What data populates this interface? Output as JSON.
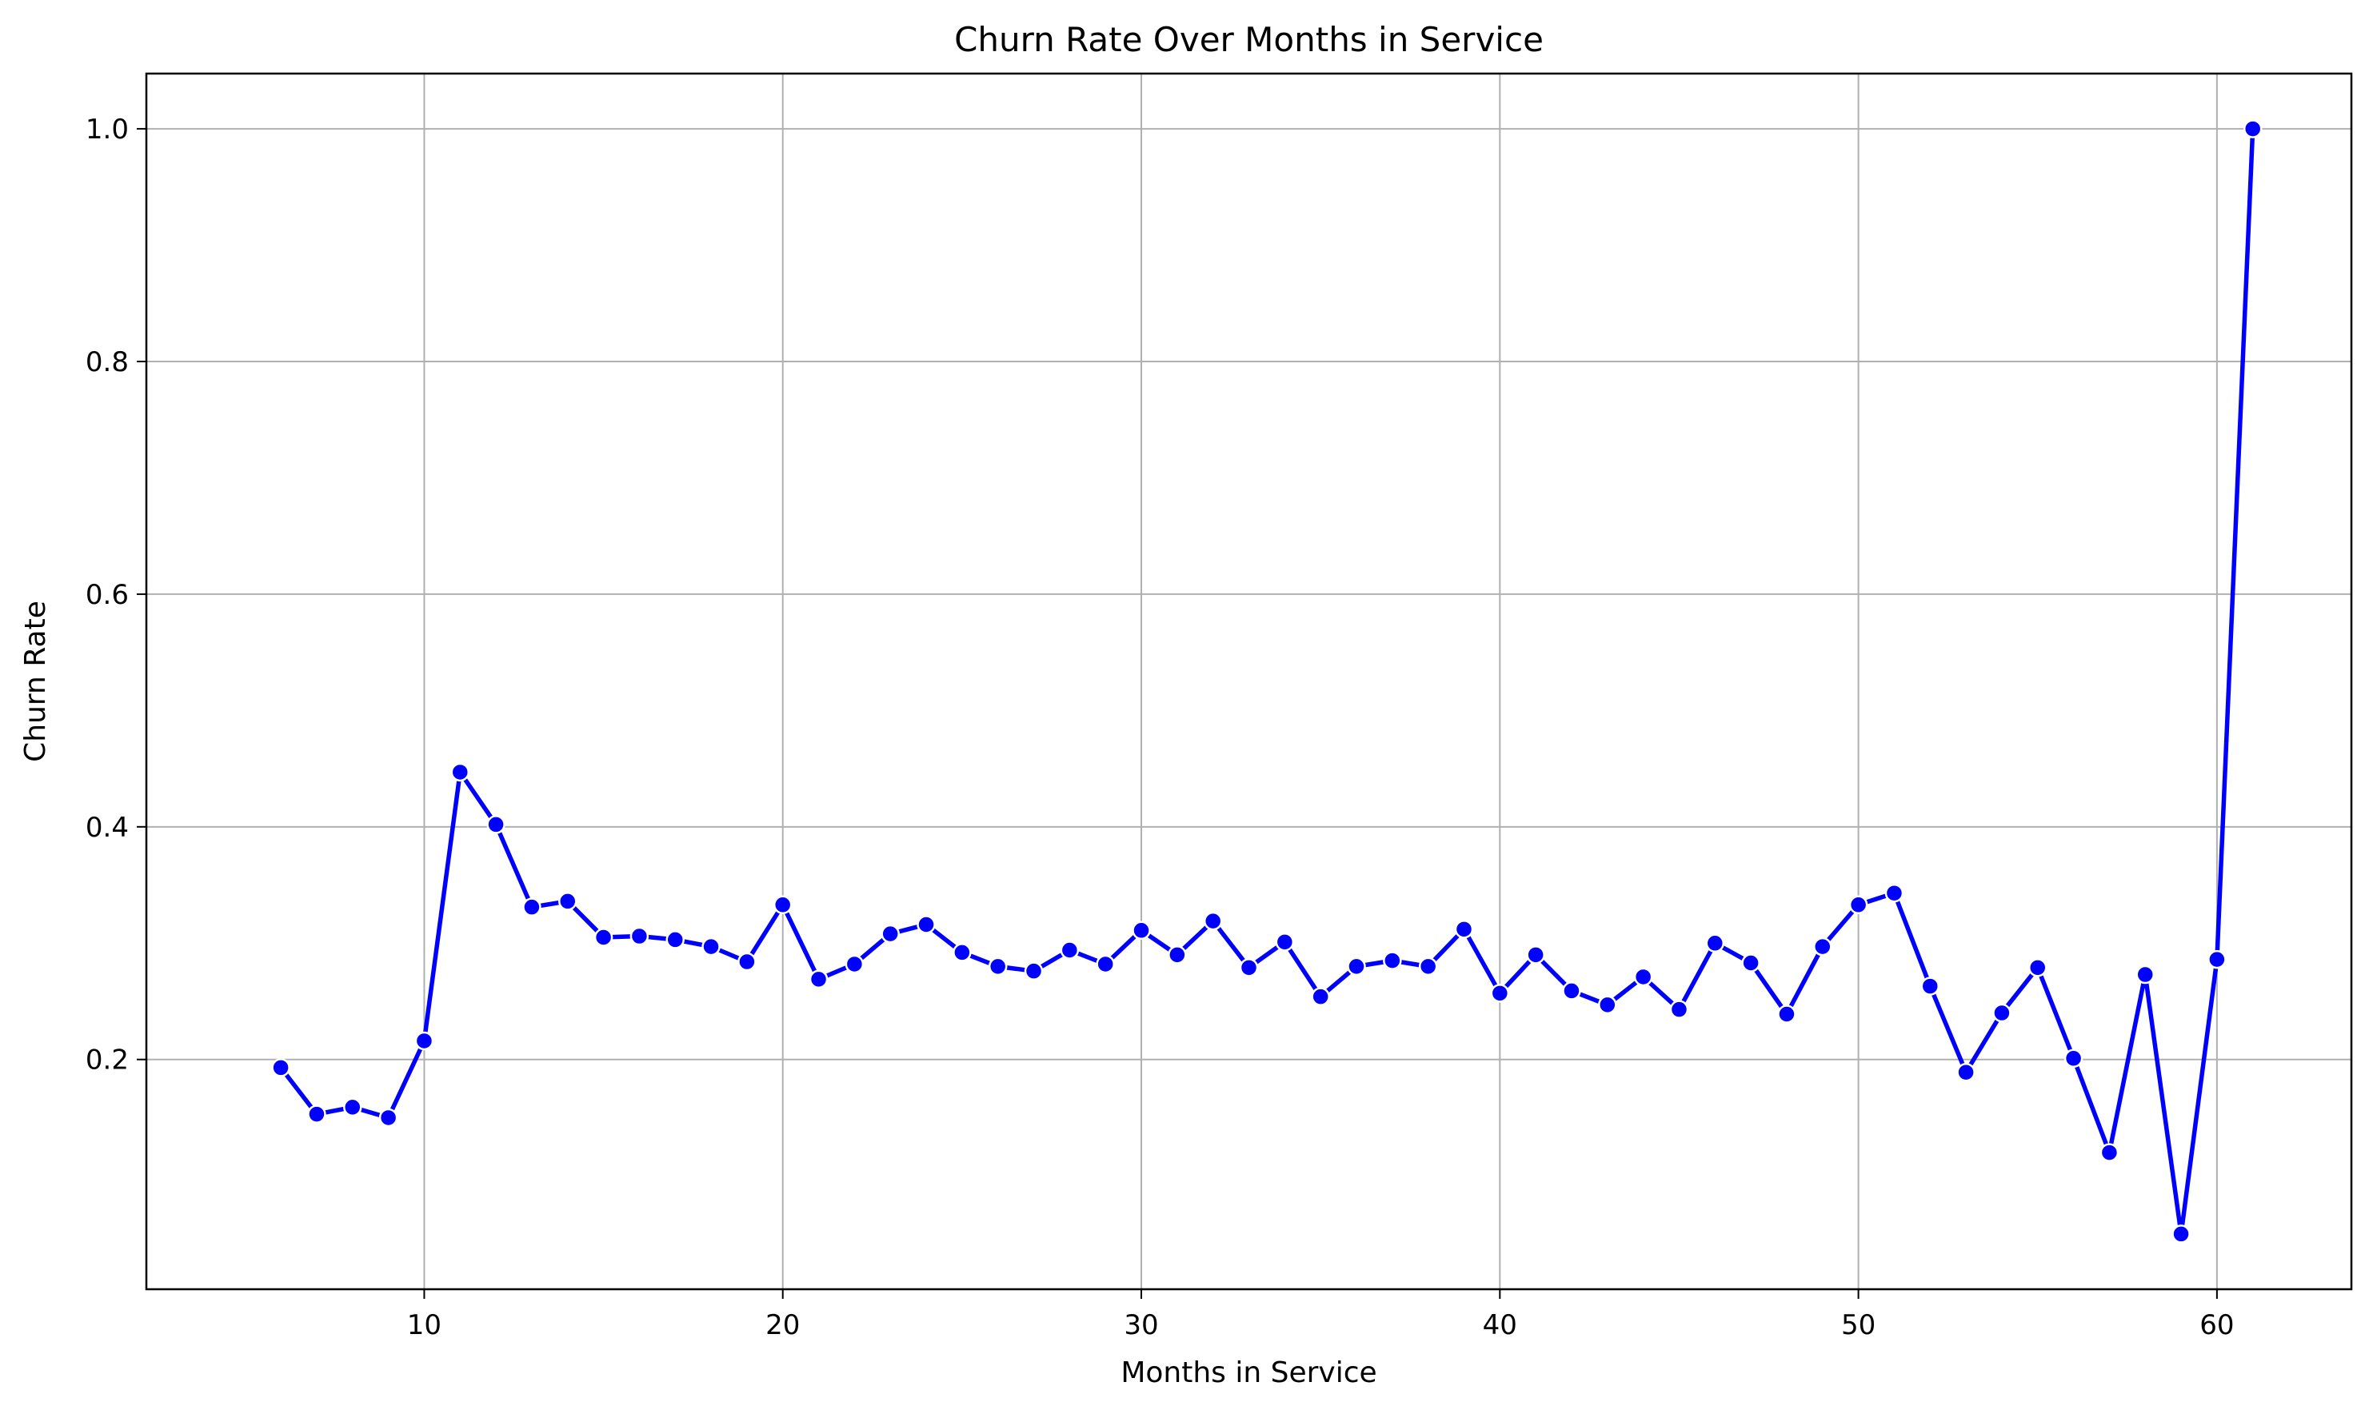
{
  "chart_data": {
    "type": "line",
    "title": "Churn Rate Over Months in Service",
    "xlabel": "Months in Service",
    "ylabel": "Churn Rate",
    "xlim": [
      2.25,
      63.75
    ],
    "ylim": [
      0.0025,
      1.0475
    ],
    "xticks": [
      10,
      20,
      30,
      40,
      50,
      60
    ],
    "yticks": [
      0.2,
      0.4,
      0.6,
      0.8,
      1.0
    ],
    "xtick_labels": [
      "10",
      "20",
      "30",
      "40",
      "50",
      "60"
    ],
    "ytick_labels": [
      "0.2",
      "0.4",
      "0.6",
      "0.8",
      "1.0"
    ],
    "grid": true,
    "legend": "none",
    "series": [
      {
        "color": "#0000ff",
        "marker": "circle",
        "x": [
          6,
          7,
          8,
          9,
          10,
          11,
          12,
          13,
          14,
          15,
          16,
          17,
          18,
          19,
          20,
          21,
          22,
          23,
          24,
          25,
          26,
          27,
          28,
          29,
          30,
          31,
          32,
          33,
          34,
          35,
          36,
          37,
          38,
          39,
          40,
          41,
          42,
          43,
          44,
          45,
          46,
          47,
          48,
          49,
          50,
          51,
          52,
          53,
          54,
          55,
          56,
          57,
          58,
          59,
          60,
          61
        ],
        "y": [
          0.193,
          0.153,
          0.159,
          0.15,
          0.216,
          0.447,
          0.402,
          0.331,
          0.336,
          0.305,
          0.306,
          0.303,
          0.297,
          0.284,
          0.333,
          0.269,
          0.282,
          0.308,
          0.316,
          0.292,
          0.28,
          0.276,
          0.294,
          0.282,
          0.311,
          0.29,
          0.319,
          0.279,
          0.301,
          0.254,
          0.28,
          0.285,
          0.28,
          0.312,
          0.257,
          0.29,
          0.259,
          0.247,
          0.271,
          0.243,
          0.3,
          0.283,
          0.239,
          0.297,
          0.333,
          0.343,
          0.263,
          0.189,
          0.24,
          0.279,
          0.201,
          0.12,
          0.273,
          0.05,
          0.286,
          1.0
        ]
      }
    ]
  }
}
